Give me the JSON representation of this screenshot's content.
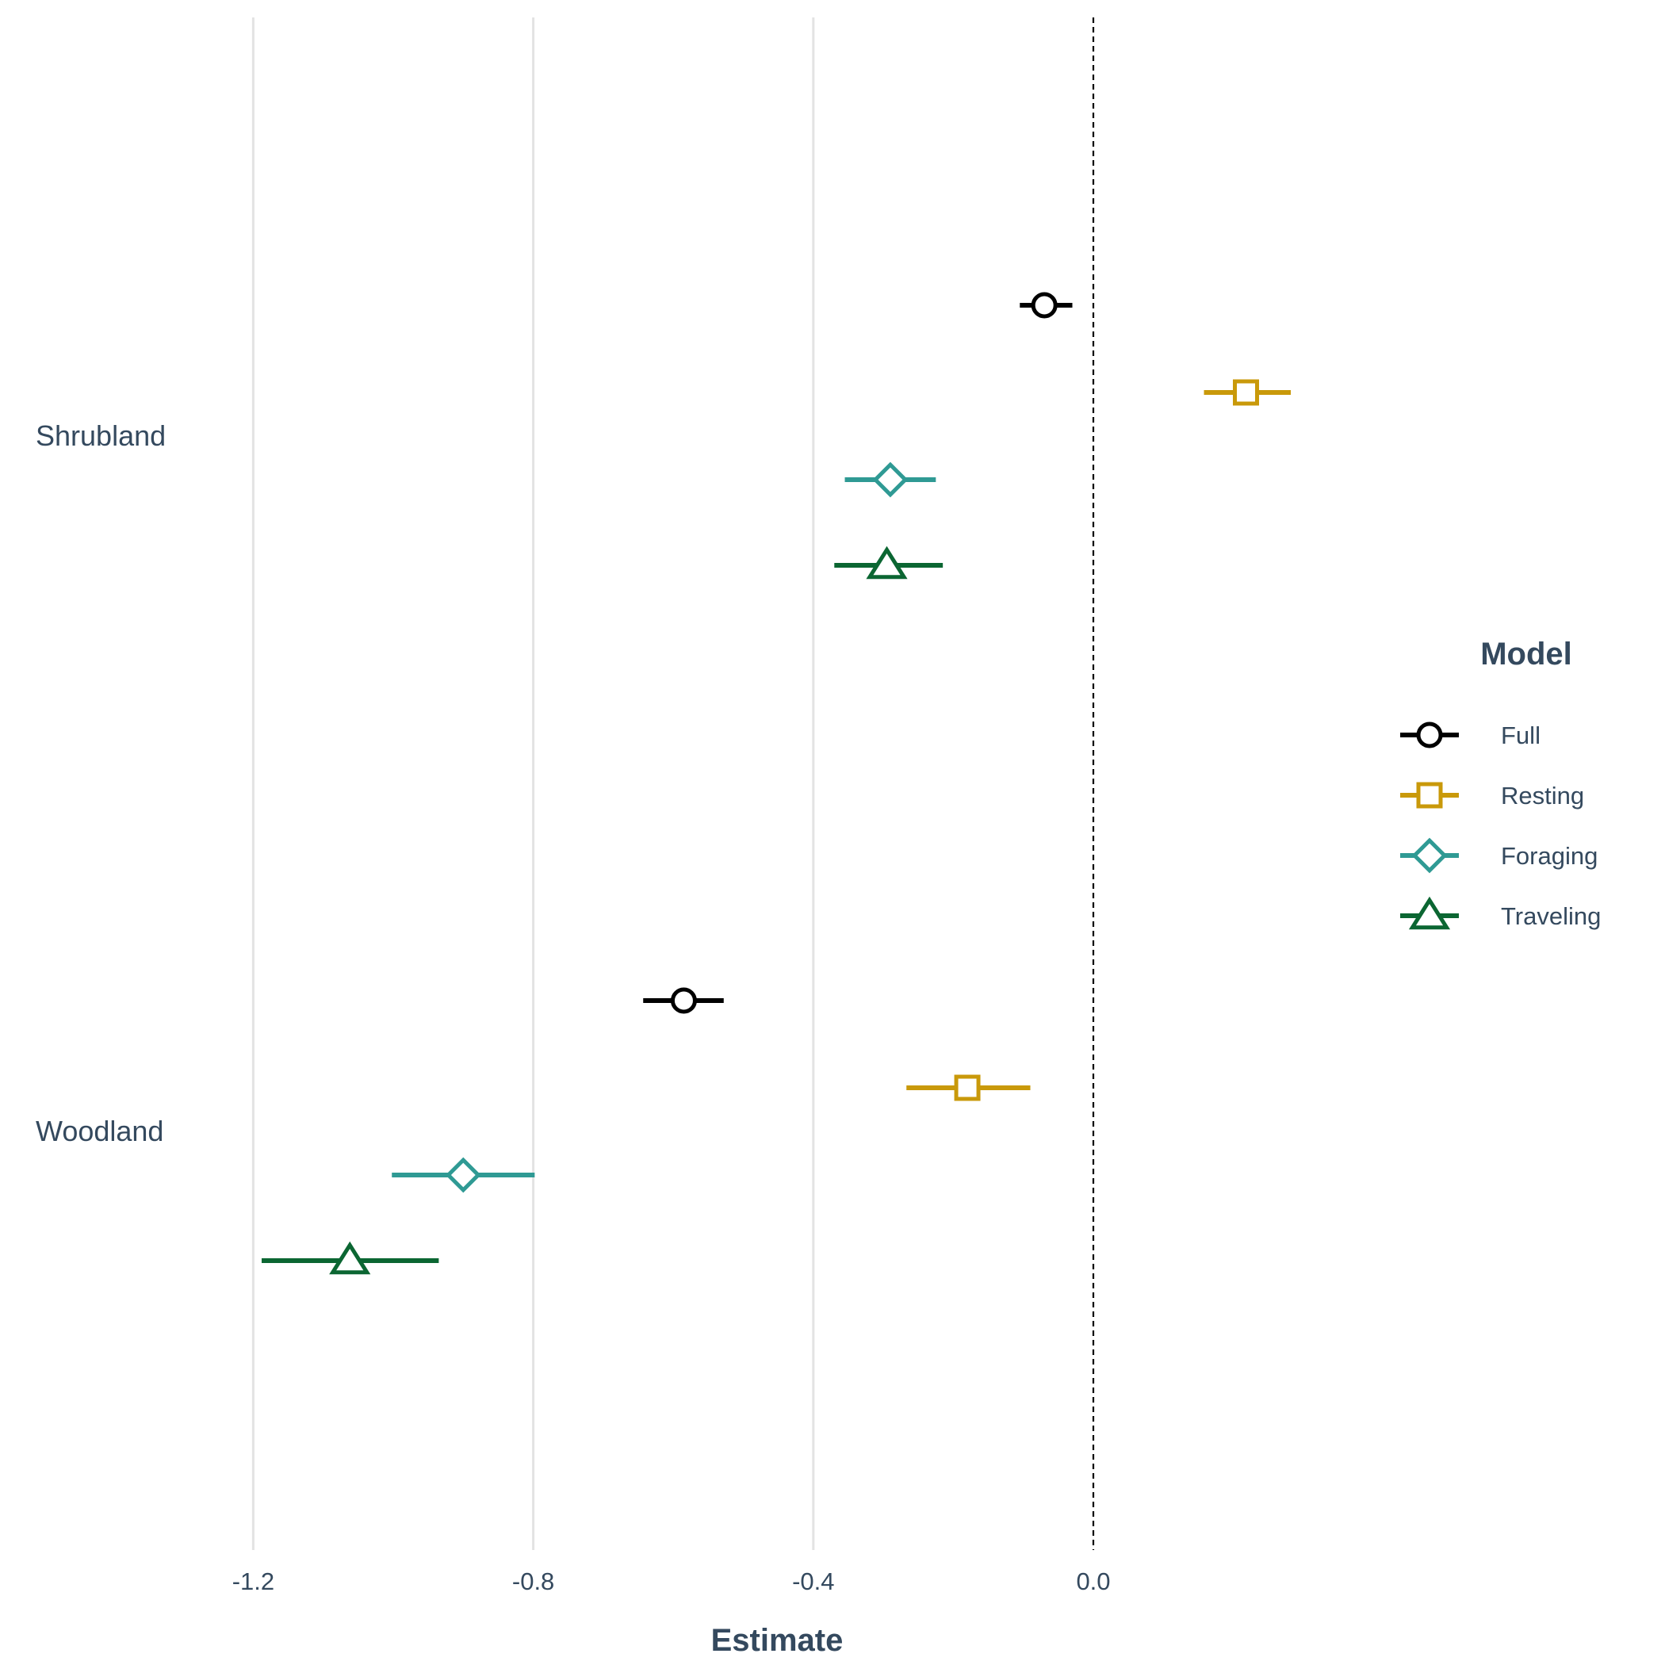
{
  "chart_data": {
    "type": "forest",
    "xlabel": "Estimate",
    "xlim": [
      -1.42,
      0.0
    ],
    "xticks": [
      {
        "value": -1.2,
        "label": "-1.2"
      },
      {
        "value": -0.8,
        "label": "-0.8"
      },
      {
        "value": -0.4,
        "label": "-0.4"
      },
      {
        "value": 0.0,
        "label": "0.0"
      }
    ],
    "reference_line": 0.0,
    "grid": "vertical major",
    "categories": [
      "Shrubland",
      "Woodland"
    ],
    "legend": {
      "title": "Model",
      "position": "right"
    },
    "series": [
      {
        "name": "Full",
        "color": "#000000",
        "shape": "circle",
        "points": [
          {
            "category": "Shrubland",
            "estimate": -0.07,
            "lower": -0.105,
            "upper": -0.03
          },
          {
            "category": "Woodland",
            "estimate": -0.585,
            "lower": -0.643,
            "upper": -0.528
          }
        ]
      },
      {
        "name": "Resting",
        "color": "#c9990a",
        "shape": "square",
        "points": [
          {
            "category": "Shrubland",
            "estimate": 0.218,
            "lower": 0.158,
            "upper": 0.282
          },
          {
            "category": "Woodland",
            "estimate": -0.18,
            "lower": -0.267,
            "upper": -0.09
          }
        ]
      },
      {
        "name": "Foraging",
        "color": "#2f9a94",
        "shape": "diamond",
        "points": [
          {
            "category": "Shrubland",
            "estimate": -0.29,
            "lower": -0.355,
            "upper": -0.225
          },
          {
            "category": "Woodland",
            "estimate": -0.9,
            "lower": -1.002,
            "upper": -0.798
          }
        ]
      },
      {
        "name": "Traveling",
        "color": "#0b6632",
        "shape": "triangle",
        "points": [
          {
            "category": "Shrubland",
            "estimate": -0.295,
            "lower": -0.37,
            "upper": -0.215
          },
          {
            "category": "Woodland",
            "estimate": -1.062,
            "lower": -1.188,
            "upper": -0.935
          }
        ]
      }
    ]
  }
}
